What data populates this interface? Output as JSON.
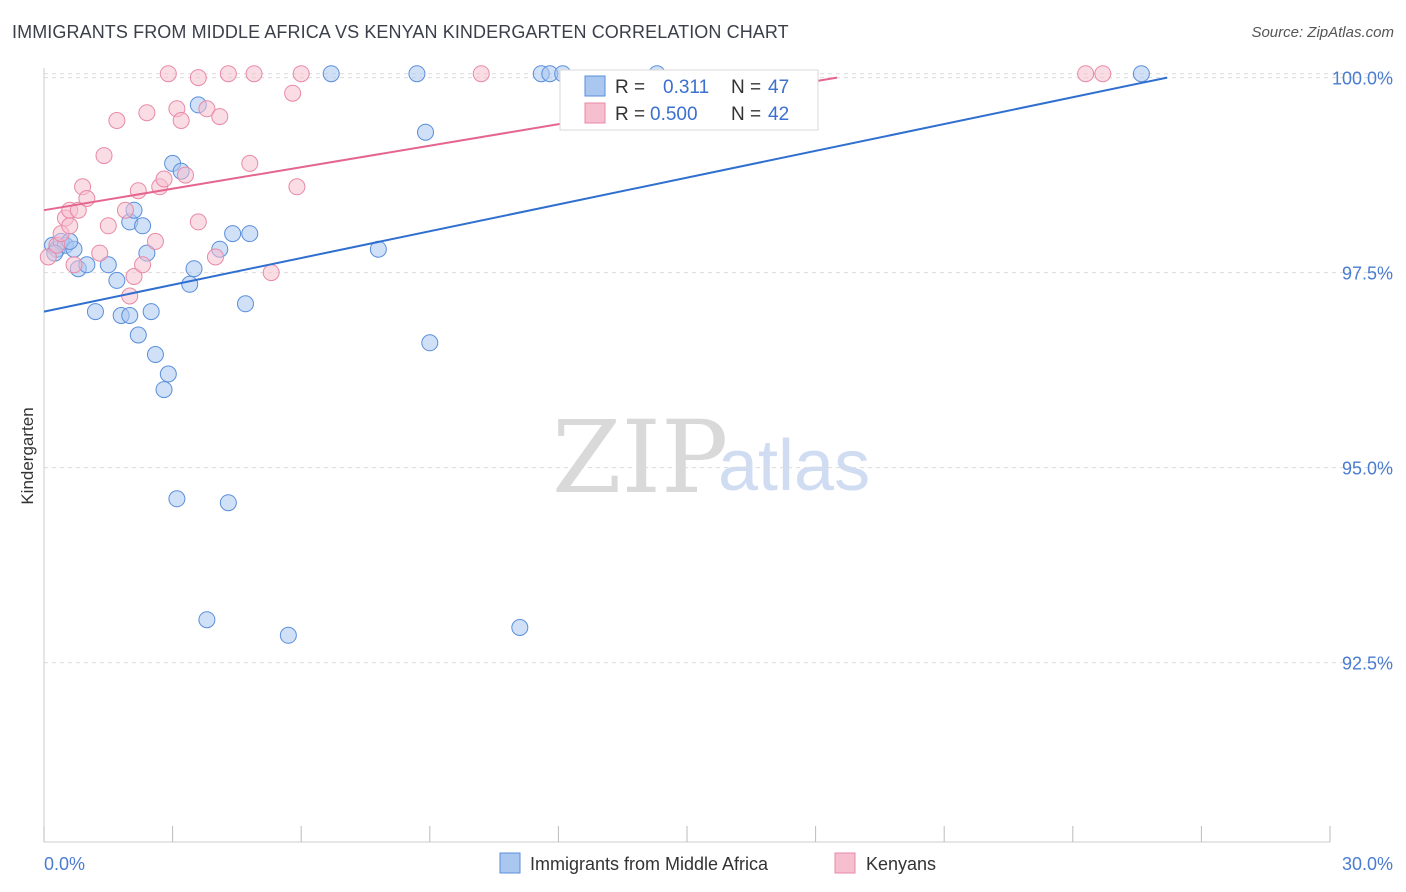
{
  "title": "IMMIGRANTS FROM MIDDLE AFRICA VS KENYAN KINDERGARTEN CORRELATION CHART",
  "source": "Source: ZipAtlas.com",
  "watermark": {
    "zip": "ZIP",
    "atlas": "atlas"
  },
  "colors": {
    "blue_fill": "#aac7f0",
    "blue_stroke": "#5a8fdc",
    "blue_line": "#2f6fcf",
    "pink_fill": "#f6bfd0",
    "pink_stroke": "#e88aa8",
    "pink_line": "#e4668f",
    "grid": "#dcdcdc",
    "tick_text": "#4a7cd0"
  },
  "legend": {
    "rows": [
      {
        "r_label": "R = ",
        "r_value": "0.311",
        "n_label": "N = ",
        "n_value": "47",
        "series": "blue"
      },
      {
        "r_label": "R = ",
        "r_value": "0.500",
        "n_label": "N = ",
        "n_value": "42",
        "series": "pink"
      }
    ]
  },
  "chart_data": {
    "type": "scatter",
    "title": "IMMIGRANTS FROM MIDDLE AFRICA VS KENYAN KINDERGARTEN CORRELATION CHART",
    "xlabel": "",
    "ylabel": "Kindergarten",
    "xlim": [
      0.0,
      30.0
    ],
    "ylim": [
      90.2,
      100.2
    ],
    "x_tick_labels": [
      "0.0%",
      "30.0%"
    ],
    "y_ticks": [
      92.5,
      95.0,
      97.5,
      100.0
    ],
    "y_tick_labels": [
      "92.5%",
      "95.0%",
      "97.5%",
      "100.0%"
    ],
    "grid": true,
    "series": [
      {
        "name": "Immigrants from Middle Africa",
        "color": "blue",
        "R": 0.311,
        "N": 47,
        "trend": {
          "x0": 0.0,
          "y0": 97.0,
          "x1": 26.2,
          "y1": 100.0
        },
        "points": [
          [
            0.2,
            97.85
          ],
          [
            0.3,
            97.8
          ],
          [
            0.4,
            97.9
          ],
          [
            0.5,
            97.85
          ],
          [
            0.7,
            97.8
          ],
          [
            0.8,
            97.55
          ],
          [
            1.0,
            97.6
          ],
          [
            1.2,
            97.0
          ],
          [
            1.7,
            97.4
          ],
          [
            1.8,
            96.95
          ],
          [
            2.0,
            96.95
          ],
          [
            2.0,
            98.15
          ],
          [
            2.1,
            98.3
          ],
          [
            2.2,
            96.7
          ],
          [
            2.4,
            97.75
          ],
          [
            2.5,
            97.0
          ],
          [
            2.6,
            96.45
          ],
          [
            2.8,
            96.0
          ],
          [
            2.9,
            96.2
          ],
          [
            3.0,
            98.9
          ],
          [
            3.2,
            98.8
          ],
          [
            3.4,
            97.35
          ],
          [
            3.5,
            97.55
          ],
          [
            3.6,
            99.65
          ],
          [
            3.8,
            93.05
          ],
          [
            4.1,
            97.8
          ],
          [
            4.3,
            94.55
          ],
          [
            4.4,
            98.0
          ],
          [
            4.7,
            97.1
          ],
          [
            4.8,
            98.0
          ],
          [
            5.7,
            92.85
          ],
          [
            6.7,
            100.05
          ],
          [
            7.8,
            97.8
          ],
          [
            8.7,
            100.05
          ],
          [
            8.9,
            99.3
          ],
          [
            9.0,
            96.6
          ],
          [
            11.1,
            92.95
          ],
          [
            11.6,
            100.05
          ],
          [
            11.8,
            100.05
          ],
          [
            12.1,
            100.05
          ],
          [
            14.3,
            100.05
          ],
          [
            25.6,
            100.05
          ],
          [
            3.1,
            94.6
          ],
          [
            0.6,
            97.9
          ],
          [
            1.5,
            97.6
          ],
          [
            2.3,
            98.1
          ],
          [
            0.25,
            97.75
          ]
        ]
      },
      {
        "name": "Kenyans",
        "color": "pink",
        "R": 0.5,
        "N": 42,
        "trend": {
          "x0": 0.0,
          "y0": 98.3,
          "x1": 18.5,
          "y1": 100.0
        },
        "points": [
          [
            0.1,
            97.7
          ],
          [
            0.3,
            97.85
          ],
          [
            0.4,
            98.0
          ],
          [
            0.5,
            98.2
          ],
          [
            0.6,
            98.1
          ],
          [
            0.6,
            98.3
          ],
          [
            0.7,
            97.6
          ],
          [
            0.8,
            98.3
          ],
          [
            0.9,
            98.6
          ],
          [
            1.0,
            98.45
          ],
          [
            1.3,
            97.75
          ],
          [
            1.4,
            99.0
          ],
          [
            1.5,
            98.1
          ],
          [
            1.7,
            99.45
          ],
          [
            1.9,
            98.3
          ],
          [
            2.0,
            97.2
          ],
          [
            2.1,
            97.45
          ],
          [
            2.2,
            98.55
          ],
          [
            2.3,
            97.6
          ],
          [
            2.4,
            99.55
          ],
          [
            2.6,
            97.9
          ],
          [
            2.7,
            98.6
          ],
          [
            2.8,
            98.7
          ],
          [
            2.9,
            100.05
          ],
          [
            3.1,
            99.6
          ],
          [
            3.2,
            99.45
          ],
          [
            3.3,
            98.75
          ],
          [
            3.6,
            100.0
          ],
          [
            3.6,
            98.15
          ],
          [
            3.8,
            99.6
          ],
          [
            4.0,
            97.7
          ],
          [
            4.1,
            99.5
          ],
          [
            4.3,
            100.05
          ],
          [
            4.8,
            98.9
          ],
          [
            4.9,
            100.05
          ],
          [
            5.3,
            97.5
          ],
          [
            5.8,
            99.8
          ],
          [
            5.9,
            98.6
          ],
          [
            6.0,
            100.05
          ],
          [
            10.2,
            100.05
          ],
          [
            24.3,
            100.05
          ],
          [
            24.7,
            100.05
          ]
        ]
      }
    ]
  }
}
